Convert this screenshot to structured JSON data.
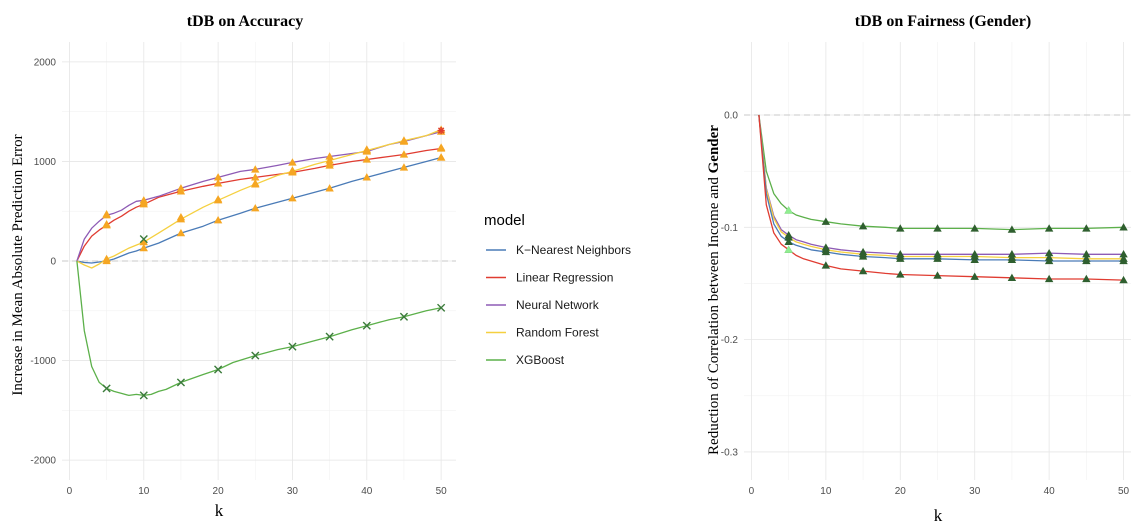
{
  "chart_data": [
    {
      "type": "line",
      "title": "tDB on Accuracy",
      "xlabel": "k",
      "ylabel": "Increase in Mean Absolute Prediction Error",
      "xlim": [
        -1,
        52
      ],
      "ylim": [
        -2200,
        2200
      ],
      "xticks": [
        0,
        10,
        20,
        30,
        40,
        50
      ],
      "yticks": [
        -2000,
        -1000,
        0,
        1000,
        2000
      ],
      "grid": true,
      "reference_line": 0,
      "series": [
        {
          "name": "K−Nearest Neighbors",
          "color": "#4a7bb7",
          "x": [
            1,
            2,
            3,
            4,
            5,
            6,
            7,
            8,
            9,
            10,
            12,
            15,
            18,
            20,
            23,
            25,
            28,
            30,
            33,
            35,
            38,
            40,
            43,
            45,
            48,
            50
          ],
          "y": [
            0,
            -15,
            -20,
            -10,
            0,
            20,
            50,
            80,
            100,
            130,
            180,
            280,
            350,
            410,
            480,
            530,
            590,
            630,
            690,
            730,
            800,
            840,
            900,
            940,
            1000,
            1040
          ],
          "marker_x": [
            5,
            10,
            15,
            20,
            25,
            30,
            35,
            40,
            45,
            50
          ],
          "marker_y": [
            0,
            130,
            280,
            410,
            530,
            630,
            730,
            840,
            940,
            1040
          ],
          "marker": "triangle"
        },
        {
          "name": "Linear Regression",
          "color": "#e03c31",
          "x": [
            1,
            2,
            3,
            4,
            5,
            6,
            7,
            8,
            9,
            10,
            12,
            15,
            18,
            20,
            23,
            25,
            28,
            30,
            33,
            35,
            38,
            40,
            43,
            45,
            48,
            50
          ],
          "y": [
            0,
            150,
            250,
            310,
            360,
            410,
            450,
            500,
            540,
            570,
            640,
            700,
            750,
            780,
            820,
            840,
            870,
            890,
            930,
            960,
            1000,
            1020,
            1050,
            1070,
            1110,
            1130
          ],
          "marker_x": [
            5,
            10,
            15,
            20,
            25,
            30,
            35,
            40,
            45,
            50
          ],
          "marker_y": [
            360,
            570,
            700,
            780,
            840,
            890,
            960,
            1020,
            1070,
            1130
          ],
          "marker": "triangle"
        },
        {
          "name": "Neural Network",
          "color": "#8e5bb5",
          "x": [
            1,
            2,
            3,
            4,
            5,
            6,
            7,
            8,
            9,
            10,
            12,
            15,
            18,
            20,
            23,
            25,
            28,
            30,
            33,
            35,
            38,
            40,
            43,
            45,
            48,
            50
          ],
          "y": [
            0,
            220,
            330,
            400,
            460,
            480,
            510,
            560,
            600,
            610,
            650,
            730,
            800,
            840,
            900,
            920,
            960,
            990,
            1030,
            1050,
            1080,
            1100,
            1170,
            1200,
            1260,
            1300
          ],
          "marker_x": [
            5,
            10,
            15,
            20,
            25,
            30,
            35,
            40,
            45,
            50
          ],
          "marker_y": [
            460,
            610,
            730,
            840,
            920,
            990,
            1050,
            1100,
            1200,
            1300
          ],
          "marker": "triangle"
        },
        {
          "name": "Random Forest",
          "color": "#f5d040",
          "x": [
            1,
            2,
            3,
            4,
            5,
            6,
            7,
            8,
            9,
            10,
            12,
            15,
            18,
            20,
            23,
            25,
            28,
            30,
            33,
            35,
            38,
            40,
            43,
            45,
            48,
            50
          ],
          "y": [
            0,
            -40,
            -70,
            -30,
            20,
            50,
            90,
            130,
            160,
            190,
            280,
            420,
            540,
            610,
            710,
            770,
            860,
            900,
            970,
            1010,
            1070,
            1110,
            1170,
            1210,
            1260,
            1320
          ],
          "marker_x": [
            5,
            10,
            15,
            20,
            25,
            30,
            35,
            40,
            45,
            50
          ],
          "marker_y": [
            20,
            190,
            420,
            610,
            770,
            900,
            1010,
            1110,
            1210,
            1320
          ],
          "marker": "triangle"
        },
        {
          "name": "XGBoost",
          "color": "#5cb04a",
          "x": [
            1,
            2,
            3,
            4,
            5,
            6,
            7,
            8,
            9,
            10,
            11,
            12,
            13,
            15,
            18,
            20,
            22,
            25,
            28,
            30,
            33,
            35,
            38,
            40,
            43,
            45,
            48,
            50
          ],
          "y": [
            0,
            -700,
            -1060,
            -1220,
            -1280,
            -1310,
            -1330,
            -1350,
            -1340,
            -1350,
            -1340,
            -1310,
            -1290,
            -1220,
            -1140,
            -1090,
            -1020,
            -950,
            -890,
            -860,
            -800,
            -760,
            -690,
            -650,
            -590,
            -560,
            -500,
            -470
          ],
          "marker_x": [
            5,
            10,
            15,
            20,
            25,
            30,
            35,
            40,
            45,
            50
          ],
          "marker_y": [
            -1280,
            -1350,
            -1220,
            -1090,
            -950,
            -860,
            -760,
            -650,
            -560,
            -470
          ],
          "marker": "x"
        }
      ],
      "extra_markers": [
        {
          "x": 5,
          "y": 370,
          "color": "#f5a623",
          "shape": "triangle"
        },
        {
          "x": 5,
          "y": 470,
          "color": "#f5a623",
          "shape": "triangle"
        },
        {
          "x": 10,
          "y": 220,
          "color": "#3a7a3a",
          "shape": "x"
        },
        {
          "x": 10,
          "y": 590,
          "color": "#f5a623",
          "shape": "triangle"
        },
        {
          "x": 15,
          "y": 440,
          "color": "#f5a623",
          "shape": "triangle"
        },
        {
          "x": 20,
          "y": 620,
          "color": "#f5a623",
          "shape": "triangle"
        },
        {
          "x": 25,
          "y": 780,
          "color": "#f5a623",
          "shape": "triangle"
        },
        {
          "x": 30,
          "y": 910,
          "color": "#f5a623",
          "shape": "triangle"
        },
        {
          "x": 35,
          "y": 980,
          "color": "#f5a623",
          "shape": "triangle"
        },
        {
          "x": 40,
          "y": 1120,
          "color": "#f5a623",
          "shape": "triangle"
        },
        {
          "x": 45,
          "y": 1210,
          "color": "#f5a623",
          "shape": "triangle"
        },
        {
          "x": 50,
          "y": 1040,
          "color": "#f5a623",
          "shape": "triangle"
        },
        {
          "x": 50,
          "y": 1140,
          "color": "#f5a623",
          "shape": "triangle"
        },
        {
          "x": 50,
          "y": 1310,
          "color": "#e03c31",
          "shape": "star"
        }
      ]
    },
    {
      "type": "line",
      "title": "tDB on Fairness (Gender)",
      "xlabel": "k",
      "ylabel_prefix": "Reduction of Correlation between Income and ",
      "ylabel_bold": "Gender",
      "xlim": [
        -1,
        51
      ],
      "ylim": [
        -0.325,
        0.065
      ],
      "xticks": [
        0,
        10,
        20,
        30,
        40,
        50
      ],
      "yticks": [
        0.0,
        -0.1,
        -0.2,
        -0.3
      ],
      "ytick_labels": [
        "0.0",
        "-0.1",
        "-0.2",
        "-0.3"
      ],
      "grid": true,
      "reference_line": 0,
      "series": [
        {
          "color": "#5cb04a",
          "x": [
            1,
            2,
            3,
            4,
            5,
            6,
            7,
            8,
            10,
            12,
            15,
            18,
            20,
            25,
            30,
            35,
            40,
            45,
            50
          ],
          "y": [
            0,
            -0.05,
            -0.07,
            -0.079,
            -0.085,
            -0.089,
            -0.091,
            -0.093,
            -0.095,
            -0.097,
            -0.099,
            -0.1,
            -0.101,
            -0.101,
            -0.101,
            -0.102,
            -0.101,
            -0.101,
            -0.1
          ],
          "marker_x": [
            5,
            10,
            15,
            20,
            25,
            30,
            35,
            40,
            45,
            50
          ],
          "marker_y": [
            -0.085,
            -0.095,
            -0.099,
            -0.101,
            -0.101,
            -0.101,
            -0.102,
            -0.101,
            -0.101,
            -0.1
          ],
          "marker": "triangle"
        },
        {
          "color": "#8e5bb5",
          "x": [
            1,
            2,
            3,
            4,
            5,
            6,
            7,
            8,
            10,
            12,
            15,
            18,
            20,
            25,
            30,
            35,
            40,
            45,
            50
          ],
          "y": [
            0,
            -0.065,
            -0.09,
            -0.102,
            -0.107,
            -0.111,
            -0.113,
            -0.115,
            -0.118,
            -0.12,
            -0.122,
            -0.123,
            -0.124,
            -0.124,
            -0.124,
            -0.124,
            -0.123,
            -0.124,
            -0.124
          ],
          "marker_x": [
            5,
            10,
            15,
            20,
            25,
            30,
            35,
            40,
            45,
            50
          ],
          "marker_y": [
            -0.107,
            -0.118,
            -0.122,
            -0.124,
            -0.124,
            -0.124,
            -0.124,
            -0.123,
            -0.124,
            -0.124
          ],
          "marker": "triangle"
        },
        {
          "color": "#f5d040",
          "x": [
            1,
            2,
            3,
            4,
            5,
            6,
            7,
            8,
            10,
            12,
            15,
            18,
            20,
            25,
            30,
            35,
            40,
            45,
            50
          ],
          "y": [
            0,
            -0.066,
            -0.092,
            -0.104,
            -0.109,
            -0.113,
            -0.115,
            -0.117,
            -0.12,
            -0.122,
            -0.124,
            -0.125,
            -0.126,
            -0.126,
            -0.126,
            -0.127,
            -0.127,
            -0.128,
            -0.128
          ],
          "marker_x": [
            5,
            10,
            15,
            20,
            25,
            30,
            35,
            40,
            45,
            50
          ],
          "marker_y": [
            -0.109,
            -0.12,
            -0.124,
            -0.126,
            -0.126,
            -0.126,
            -0.127,
            -0.127,
            -0.128,
            -0.128
          ],
          "marker": "triangle"
        },
        {
          "color": "#4a7bb7",
          "x": [
            1,
            2,
            3,
            4,
            5,
            6,
            7,
            8,
            10,
            12,
            15,
            18,
            20,
            25,
            30,
            35,
            40,
            45,
            50
          ],
          "y": [
            0,
            -0.07,
            -0.097,
            -0.108,
            -0.113,
            -0.116,
            -0.118,
            -0.12,
            -0.122,
            -0.124,
            -0.126,
            -0.127,
            -0.128,
            -0.128,
            -0.129,
            -0.129,
            -0.13,
            -0.13,
            -0.13
          ],
          "marker_x": [
            5,
            10,
            15,
            20,
            25,
            30,
            35,
            40,
            45,
            50
          ],
          "marker_y": [
            -0.113,
            -0.122,
            -0.126,
            -0.128,
            -0.128,
            -0.129,
            -0.129,
            -0.13,
            -0.13,
            -0.13
          ],
          "marker": "triangle"
        },
        {
          "color": "#e03c31",
          "x": [
            1,
            2,
            3,
            4,
            5,
            6,
            7,
            8,
            10,
            12,
            15,
            18,
            20,
            25,
            30,
            35,
            40,
            45,
            50
          ],
          "y": [
            0,
            -0.08,
            -0.105,
            -0.115,
            -0.12,
            -0.125,
            -0.128,
            -0.13,
            -0.134,
            -0.137,
            -0.139,
            -0.141,
            -0.142,
            -0.143,
            -0.144,
            -0.145,
            -0.146,
            -0.146,
            -0.147
          ],
          "marker_x": [
            5,
            10,
            15,
            20,
            25,
            30,
            35,
            40,
            45,
            50
          ],
          "marker_y": [
            -0.12,
            -0.134,
            -0.139,
            -0.142,
            -0.143,
            -0.144,
            -0.145,
            -0.146,
            -0.146,
            -0.147
          ],
          "marker": "triangle"
        }
      ],
      "marker_color": "#2f5f2f",
      "highlight_markers": [
        {
          "x": 5,
          "y": -0.085,
          "color": "#90ee90"
        },
        {
          "x": 5,
          "y": -0.12,
          "color": "#90ee90"
        }
      ]
    }
  ],
  "legend": {
    "title": "model",
    "placement": "between-panels",
    "items": [
      {
        "label": "K−Nearest Neighbors",
        "color": "#4a7bb7"
      },
      {
        "label": "Linear Regression",
        "color": "#e03c31"
      },
      {
        "label": "Neural Network",
        "color": "#8e5bb5"
      },
      {
        "label": "Random Forest",
        "color": "#f5d040"
      },
      {
        "label": "XGBoost",
        "color": "#5cb04a"
      }
    ]
  }
}
